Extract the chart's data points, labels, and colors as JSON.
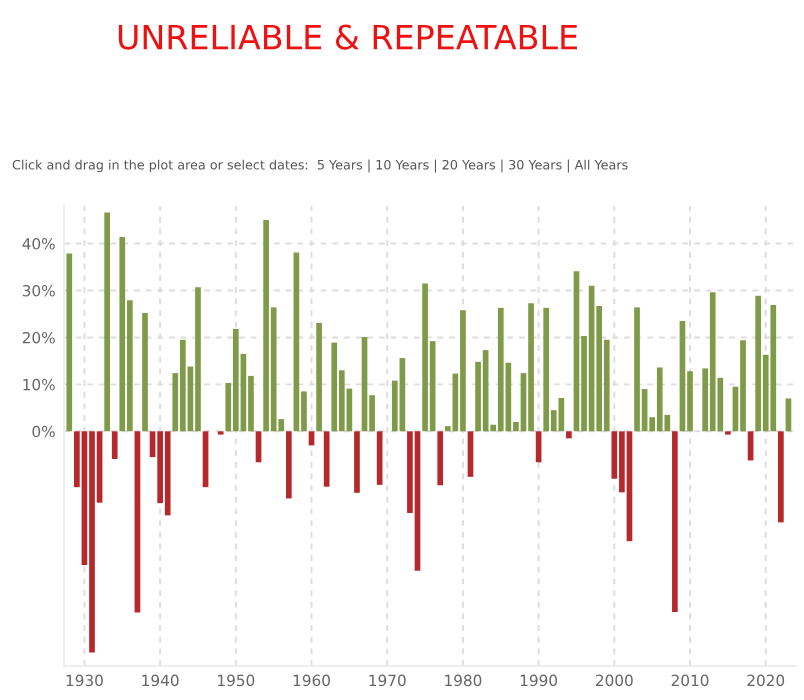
{
  "chart_data": {
    "type": "bar",
    "title": "UNRELIABLE & REPEATABLE",
    "annotations": [
      "Click and drag in the plot area or select dates:  5 Years | 10 Years | 20 Years | 30 Years | All Years"
    ],
    "x": [
      1928,
      1929,
      1930,
      1931,
      1932,
      1933,
      1934,
      1935,
      1936,
      1937,
      1938,
      1939,
      1940,
      1941,
      1942,
      1943,
      1944,
      1945,
      1946,
      1947,
      1948,
      1949,
      1950,
      1951,
      1952,
      1953,
      1954,
      1955,
      1956,
      1957,
      1958,
      1959,
      1960,
      1961,
      1962,
      1963,
      1964,
      1965,
      1966,
      1967,
      1968,
      1969,
      1970,
      1971,
      1972,
      1973,
      1974,
      1975,
      1976,
      1977,
      1978,
      1979,
      1980,
      1981,
      1982,
      1983,
      1984,
      1985,
      1986,
      1987,
      1988,
      1989,
      1990,
      1991,
      1992,
      1993,
      1994,
      1995,
      1996,
      1997,
      1998,
      1999,
      2000,
      2001,
      2002,
      2003,
      2004,
      2005,
      2006,
      2007,
      2008,
      2009,
      2010,
      2011,
      2012,
      2013,
      2014,
      2015,
      2016,
      2017,
      2018,
      2019,
      2020,
      2021,
      2022,
      2023
    ],
    "values": [
      37.9,
      -11.9,
      -28.5,
      -47.1,
      -15.2,
      46.6,
      -5.9,
      41.4,
      27.9,
      -38.6,
      25.2,
      -5.5,
      -15.3,
      -17.9,
      12.4,
      19.5,
      13.8,
      30.7,
      -11.9,
      0.0,
      -0.7,
      10.3,
      21.8,
      16.5,
      11.8,
      -6.6,
      45.0,
      26.4,
      2.6,
      -14.3,
      38.1,
      8.5,
      -3.0,
      23.1,
      -11.8,
      18.9,
      13.0,
      9.1,
      -13.1,
      20.1,
      7.7,
      -11.4,
      null,
      10.8,
      15.6,
      -17.4,
      -29.7,
      31.5,
      19.2,
      -11.5,
      1.1,
      12.3,
      25.8,
      -9.7,
      14.8,
      17.3,
      1.4,
      26.3,
      14.6,
      2.0,
      12.4,
      27.3,
      -6.6,
      26.3,
      4.5,
      7.1,
      -1.5,
      34.1,
      20.3,
      31.0,
      26.7,
      19.5,
      -10.1,
      -13.0,
      -23.4,
      26.4,
      9.0,
      3.0,
      13.6,
      3.5,
      -38.5,
      23.5,
      12.8,
      0.0,
      13.4,
      29.6,
      11.4,
      -0.7,
      9.5,
      19.4,
      -6.2,
      28.9,
      16.3,
      26.9,
      -19.4,
      7.0
    ],
    "colors": [
      "#7f9a48",
      "#b5282b",
      "#b5282b",
      "#b5282b",
      "#b5282b",
      "#7f9a48",
      "#b5282b",
      "#7f9a48",
      "#7f9a48",
      "#b5282b",
      "#7f9a48",
      "#b5282b",
      "#b5282b",
      "#b5282b",
      "#7f9a48",
      "#7f9a48",
      "#7f9a48",
      "#7f9a48",
      "#b5282b",
      "#7f9a48",
      "#b5282b",
      "#7f9a48",
      "#7f9a48",
      "#7f9a48",
      "#7f9a48",
      "#b5282b",
      "#7f9a48",
      "#7f9a48",
      "#7f9a48",
      "#b5282b",
      "#7f9a48",
      "#7f9a48",
      "#b5282b",
      "#7f9a48",
      "#b5282b",
      "#7f9a48",
      "#7f9a48",
      "#7f9a48",
      "#b5282b",
      "#7f9a48",
      "#7f9a48",
      "#b5282b",
      "#7f9a48",
      "#7f9a48",
      "#7f9a48",
      "#b5282b",
      "#b5282b",
      "#7f9a48",
      "#7f9a48",
      "#b5282b",
      "#7f9a48",
      "#7f9a48",
      "#7f9a48",
      "#b5282b",
      "#7f9a48",
      "#7f9a48",
      "#7f9a48",
      "#7f9a48",
      "#7f9a48",
      "#7f9a48",
      "#7f9a48",
      "#7f9a48",
      "#b5282b",
      "#7f9a48",
      "#7f9a48",
      "#7f9a48",
      "#b5282b",
      "#7f9a48",
      "#7f9a48",
      "#7f9a48",
      "#7f9a48",
      "#7f9a48",
      "#b5282b",
      "#b5282b",
      "#b5282b",
      "#7f9a48",
      "#7f9a48",
      "#7f9a48",
      "#7f9a48",
      "#7f9a48",
      "#b5282b",
      "#7f9a48",
      "#7f9a48",
      "#7f9a48",
      "#7f9a48",
      "#7f9a48",
      "#7f9a48",
      "#b5282b",
      "#7f9a48",
      "#7f9a48",
      "#b5282b",
      "#7f9a48",
      "#7f9a48",
      "#7f9a48",
      "#b5282b",
      "#7f9a48"
    ],
    "xlim": [
      1927.3,
      2024
    ],
    "xticks": [
      1930,
      1940,
      1950,
      1960,
      1970,
      1980,
      1990,
      2000,
      2010,
      2020
    ],
    "ylim": [
      -50,
      48
    ],
    "yticks": [
      {
        "value": 0,
        "label": "0%"
      },
      {
        "value": 10,
        "label": "10%"
      },
      {
        "value": 20,
        "label": "20%"
      },
      {
        "value": 30,
        "label": "30%"
      },
      {
        "value": 40,
        "label": "40%"
      }
    ],
    "grid": true,
    "legend": false
  }
}
